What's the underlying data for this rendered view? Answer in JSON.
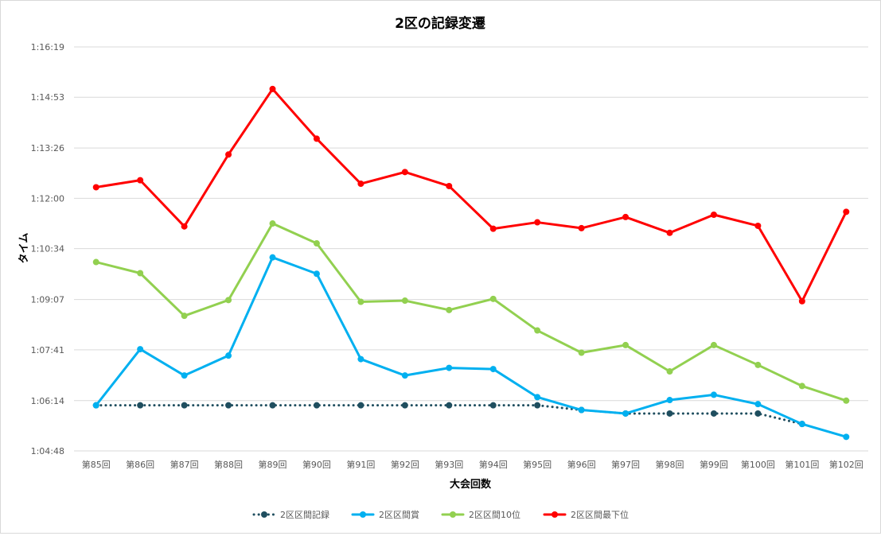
{
  "chart_data": {
    "type": "line",
    "title": "2区の記録変遷",
    "xlabel": "大会回数",
    "ylabel": "タイム",
    "categories": [
      "第85回",
      "第86回",
      "第87回",
      "第88回",
      "第89回",
      "第90回",
      "第91回",
      "第92回",
      "第93回",
      "第94回",
      "第95回",
      "第96回",
      "第97回",
      "第98回",
      "第99回",
      "第100回",
      "第101回",
      "第102回"
    ],
    "y_unit": "seconds",
    "ylim": [
      3888,
      4579
    ],
    "yticks": [
      {
        "value": 3888,
        "label": "1:04:48"
      },
      {
        "value": 3974,
        "label": "1:06:14"
      },
      {
        "value": 4061,
        "label": "1:07:41"
      },
      {
        "value": 4147,
        "label": "1:09:07"
      },
      {
        "value": 4234,
        "label": "1:10:34"
      },
      {
        "value": 4320,
        "label": "1:12:00"
      },
      {
        "value": 4406,
        "label": "1:13:26"
      },
      {
        "value": 4493,
        "label": "1:14:53"
      },
      {
        "value": 4579,
        "label": "1:16:19"
      }
    ],
    "grid": true,
    "legend_position": "bottom",
    "series": [
      {
        "name": "2区区間記録",
        "color": "#1f4e5f",
        "style": "dotted",
        "values": [
          3966,
          3966,
          3966,
          3966,
          3966,
          3966,
          3966,
          3966,
          3966,
          3966,
          3966,
          3958,
          3952,
          3952,
          3952,
          3952,
          3934,
          null
        ]
      },
      {
        "name": "2区区間賞",
        "color": "#00b0f0",
        "style": "solid",
        "values": [
          3966,
          4062,
          4017,
          4051,
          4219,
          4191,
          4045,
          4017,
          4030,
          4028,
          3980,
          3958,
          3952,
          3975,
          3984,
          3968,
          3934,
          3912
        ]
      },
      {
        "name": "2区区間10位",
        "color": "#92d050",
        "style": "solid",
        "values": [
          4211,
          4192,
          4119,
          4146,
          4277,
          4243,
          4143,
          4145,
          4129,
          4148,
          4094,
          4056,
          4069,
          4024,
          4069,
          4035,
          3999,
          3974
        ]
      },
      {
        "name": "2区区間最下位",
        "color": "#ff0000",
        "style": "solid",
        "values": [
          4339,
          4351,
          4272,
          4395,
          4507,
          4422,
          4345,
          4365,
          4341,
          4268,
          4279,
          4269,
          4288,
          4261,
          4292,
          4273,
          4144,
          4297
        ]
      }
    ]
  }
}
